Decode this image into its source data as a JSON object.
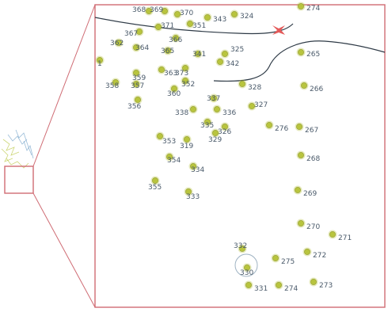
{
  "colors": {
    "frame": "#cf6b73",
    "boundary": "#2e3a46",
    "point": "#b8c43e",
    "point_edge": "#8f9a28",
    "label": "#4a5a6a",
    "highlight": "#e45a5a",
    "overview": "#6fa0c8"
  },
  "icons": {
    "highlight": "bird-icon"
  },
  "points": [
    {
      "label": "368",
      "grid": "C3"
    },
    {
      "label": "369",
      "grid": "C4"
    },
    {
      "label": "370",
      "grid": "C4"
    },
    {
      "label": "343",
      "grid": "C4"
    },
    {
      "label": "324",
      "grid": "C4"
    },
    {
      "label": "274",
      "grid": "C4"
    },
    {
      "label": "367",
      "grid": "C3"
    },
    {
      "label": "371",
      "grid": "C3"
    },
    {
      "label": "351",
      "grid": "C3"
    },
    {
      "label": "366",
      "grid": "C3"
    },
    {
      "label": "362",
      "grid": "C3"
    },
    {
      "label": "364",
      "grid": "C3"
    },
    {
      "label": "365",
      "grid": "C3"
    },
    {
      "label": "341",
      "grid": "C3"
    },
    {
      "label": "325",
      "grid": "C3"
    },
    {
      "label": "342",
      "grid": "C3"
    },
    {
      "label": "265",
      "grid": "C3"
    },
    {
      "label": "1",
      "grid": "C3"
    },
    {
      "label": "359",
      "grid": "C3"
    },
    {
      "label": "363",
      "grid": "C3"
    },
    {
      "label": "373",
      "grid": "C3"
    },
    {
      "label": "358",
      "grid": "C3"
    },
    {
      "label": "357",
      "grid": "C3"
    },
    {
      "label": "352",
      "grid": "C3"
    },
    {
      "label": "328",
      "grid": "C3"
    },
    {
      "label": "266",
      "grid": "C3"
    },
    {
      "label": "360",
      "grid": "C3"
    },
    {
      "label": "356",
      "grid": "C3"
    },
    {
      "label": "337",
      "grid": "C3"
    },
    {
      "label": "338",
      "grid": "C3"
    },
    {
      "label": "336",
      "grid": "C3"
    },
    {
      "label": "327",
      "grid": "C3"
    },
    {
      "label": "335",
      "grid": "C3"
    },
    {
      "label": "326",
      "grid": "C3"
    },
    {
      "label": "276",
      "grid": "C3"
    },
    {
      "label": "267",
      "grid": "C3"
    },
    {
      "label": "353",
      "grid": "C3"
    },
    {
      "label": "319",
      "grid": "C3"
    },
    {
      "label": "329",
      "grid": "C3"
    },
    {
      "label": "268",
      "grid": "C3"
    },
    {
      "label": "354",
      "grid": "C3"
    },
    {
      "label": "334",
      "grid": "C3"
    },
    {
      "label": "355",
      "grid": "C3"
    },
    {
      "label": "333",
      "grid": "C3"
    },
    {
      "label": "269",
      "grid": "C3"
    },
    {
      "label": "270",
      "grid": "C3"
    },
    {
      "label": "271",
      "grid": "C3"
    },
    {
      "label": "332",
      "grid": "C3"
    },
    {
      "label": "275",
      "grid": "C3"
    },
    {
      "label": "272",
      "grid": "C3"
    },
    {
      "label": "330",
      "grid": "C3"
    },
    {
      "label": "331",
      "grid": "C3"
    },
    {
      "label": "274",
      "grid": "C3"
    },
    {
      "label": "273",
      "grid": "C3"
    }
  ],
  "selected": "330"
}
